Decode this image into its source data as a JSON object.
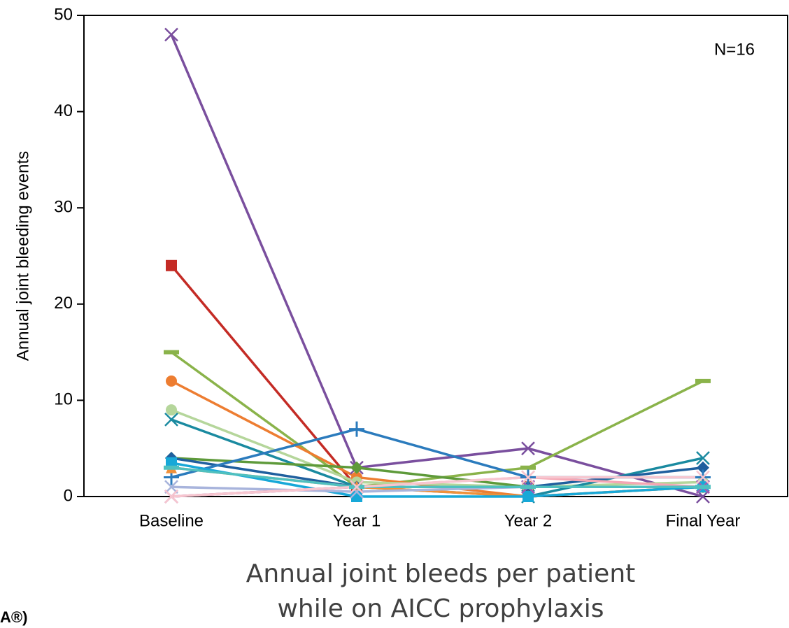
{
  "chart_data": {
    "type": "line",
    "y_label": "Annual joint bleeding events",
    "x_label": [
      "Annual joint bleeds per patient",
      "while on AICC prophylaxis"
    ],
    "annotation": "N=16",
    "footnote": "A®)",
    "categories": [
      "Baseline",
      "Year 1",
      "Year 2",
      "Final Year"
    ],
    "ylim": [
      0,
      50
    ],
    "yticks": [
      0,
      10,
      20,
      30,
      40,
      50
    ],
    "grid": false,
    "series": [
      {
        "color": "#7a4f9e",
        "marker": "x",
        "values": [
          48,
          3,
          5,
          0
        ]
      },
      {
        "color": "#c42b25",
        "marker": "square",
        "values": [
          24,
          1,
          1,
          1
        ]
      },
      {
        "color": "#8ab34a",
        "marker": "dash",
        "values": [
          15,
          1,
          3,
          12
        ]
      },
      {
        "color": "#ed7d31",
        "marker": "circle",
        "values": [
          12,
          2,
          0,
          1
        ]
      },
      {
        "color": "#b5d69b",
        "marker": "circle",
        "values": [
          9,
          1.5,
          1,
          1.5
        ]
      },
      {
        "color": "#1a8aa0",
        "marker": "x",
        "values": [
          8,
          1,
          0,
          4
        ]
      },
      {
        "color": "#5e9a3a",
        "marker": "diamond",
        "values": [
          4,
          3,
          1,
          1
        ]
      },
      {
        "color": "#1f5f9e",
        "marker": "diamond",
        "values": [
          4,
          1,
          1,
          3
        ]
      },
      {
        "color": "#2b7bbd",
        "marker": "plus",
        "values": [
          2,
          7,
          2,
          2
        ]
      },
      {
        "color": "#f0913a",
        "marker": "triangle",
        "values": [
          3,
          1,
          0,
          1
        ]
      },
      {
        "color": "#17a8d8",
        "marker": "square",
        "values": [
          3.5,
          0,
          0,
          1
        ]
      },
      {
        "color": "#a8b4dc",
        "marker": "x",
        "values": [
          1,
          0.5,
          1,
          1
        ]
      },
      {
        "color": "#f4a6b4",
        "marker": "x",
        "values": [
          0,
          1,
          2,
          1
        ]
      },
      {
        "color": "#9b59b6",
        "marker": "x",
        "values": [
          0,
          1,
          1,
          1
        ]
      },
      {
        "color": "#4fc0c0",
        "marker": "dash",
        "values": [
          3,
          1,
          1,
          1
        ]
      },
      {
        "color": "#f7c6cf",
        "marker": "x",
        "values": [
          0,
          1,
          2,
          2
        ]
      }
    ]
  }
}
